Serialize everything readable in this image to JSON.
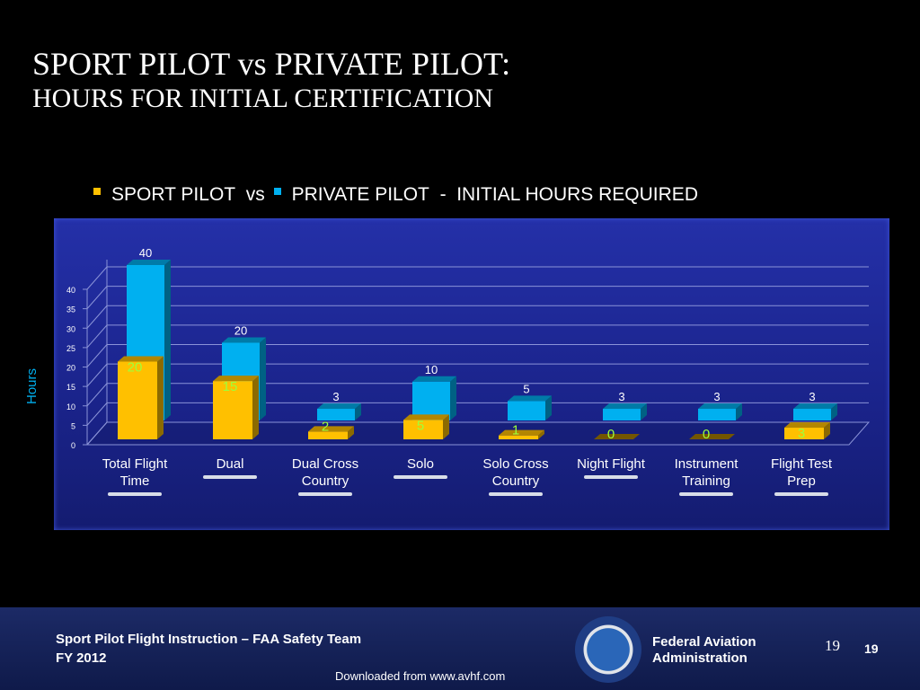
{
  "title": "SPORT PILOT vs PRIVATE PILOT:",
  "subtitle": "HOURS FOR INITIAL CERTIFICATION",
  "chart_data": {
    "type": "bar3d",
    "legend_separator": "vs",
    "legend_note": "-  INITIAL HOURS REQUIRED",
    "y_label": "Hours",
    "categories": [
      "Total Flight Time",
      "Dual",
      "Dual Cross Country",
      "Solo",
      "Solo Cross Country",
      "Night Flight",
      "Instrument Training",
      "Flight Test Prep"
    ],
    "series": [
      {
        "name": "SPORT PILOT",
        "color": "#ffc000",
        "values": [
          20,
          15,
          2,
          5,
          1,
          0,
          0,
          3
        ]
      },
      {
        "name": "PRIVATE PILOT",
        "color": "#00b0f0",
        "values": [
          40,
          20,
          3,
          10,
          5,
          3,
          3,
          3
        ]
      }
    ],
    "ylim": [
      0,
      40
    ],
    "yticks": [
      0,
      5,
      10,
      15,
      20,
      25,
      30,
      35,
      40
    ],
    "grid": true
  },
  "footer": {
    "left1": "Sport Pilot Flight Instruction – FAA Safety Team",
    "left2": "FY 2012",
    "org1": "Federal Aviation",
    "org2": "Administration",
    "page1": "19",
    "page2": "19",
    "source": "Downloaded from www.avhf.com"
  }
}
